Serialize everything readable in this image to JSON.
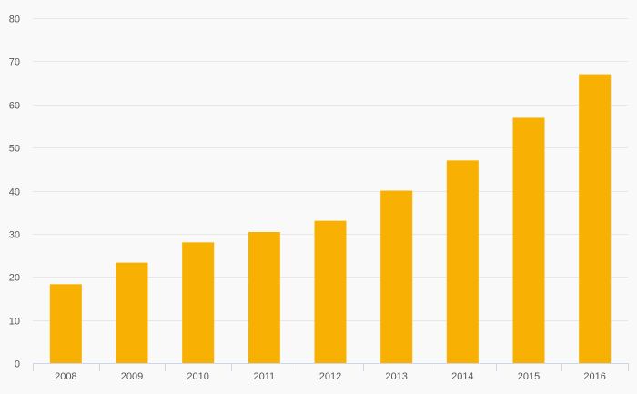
{
  "chart_data": {
    "type": "bar",
    "categories": [
      "2008",
      "2009",
      "2010",
      "2011",
      "2012",
      "2013",
      "2014",
      "2015",
      "2016"
    ],
    "values": [
      18.3,
      23.3,
      28.0,
      30.4,
      33.0,
      40.0,
      47.0,
      56.9,
      67.0
    ],
    "ylim": [
      0,
      80
    ],
    "yticks": [
      0,
      10,
      20,
      30,
      40,
      50,
      60,
      70,
      80
    ],
    "title": "",
    "xlabel": "",
    "ylabel": "",
    "grid": true,
    "legend": "none",
    "colors": {
      "bar": "#f8b102",
      "grid": "#e6e6e6",
      "axis": "#ccd6eb",
      "background": "#f9f9f9",
      "text": "#555555"
    }
  }
}
